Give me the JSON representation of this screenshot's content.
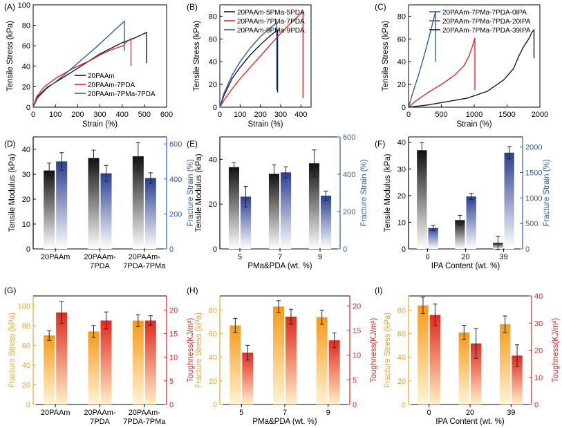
{
  "colors": {
    "black": "#1a1a1a",
    "red": "#e8281e",
    "blue": "#2e5ca8",
    "orange": "#f39c1e",
    "axis_blue": "#2e5ca8",
    "axis_orange": "#f0a030",
    "axis_red": "#e02020"
  },
  "chart_data": [
    {
      "panel": "(A)",
      "type": "line",
      "xlabel": "Strain (%)",
      "ylabel": "Tensile Stress (kPa)",
      "xlim": [
        0,
        600
      ],
      "ylim": [
        0,
        100
      ],
      "xticks": [
        0,
        100,
        200,
        300,
        400,
        500,
        600
      ],
      "yticks": [
        0,
        20,
        40,
        60,
        80,
        100
      ],
      "legend_position": "bottom-right",
      "series": [
        {
          "name": "20PAAm",
          "color": "black",
          "end_drop": 43,
          "points": [
            [
              0,
              0
            ],
            [
              20,
              10
            ],
            [
              60,
              19
            ],
            [
              120,
              27
            ],
            [
              200,
              38
            ],
            [
              300,
              52
            ],
            [
              400,
              63
            ],
            [
              450,
              67
            ],
            [
              480,
              70
            ],
            [
              510,
              73
            ]
          ]
        },
        {
          "name": "20PAAm-7PDA",
          "color": "red",
          "end_drop": 40,
          "points": [
            [
              0,
              0
            ],
            [
              15,
              10
            ],
            [
              50,
              20
            ],
            [
              100,
              28
            ],
            [
              180,
              38
            ],
            [
              260,
              46
            ],
            [
              300,
              51
            ],
            [
              350,
              56
            ],
            [
              390,
              59
            ],
            [
              405,
              60
            ],
            [
              420,
              64
            ],
            [
              440,
              67
            ]
          ]
        },
        {
          "name": "20PAAm-7PMa-7PDA",
          "color": "blue",
          "end_drop": 55,
          "points": [
            [
              0,
              0
            ],
            [
              20,
              9
            ],
            [
              60,
              18
            ],
            [
              120,
              28
            ],
            [
              200,
              43
            ],
            [
              280,
              58
            ],
            [
              350,
              72
            ],
            [
              390,
              80
            ],
            [
              410,
              84
            ]
          ]
        }
      ]
    },
    {
      "panel": "(B)",
      "type": "line",
      "xlabel": "Strain (%)",
      "ylabel": "Tensile Stress (kPa)",
      "xlim": [
        0,
        450
      ],
      "ylim": [
        0,
        90
      ],
      "xticks": [
        0,
        100,
        200,
        300,
        400
      ],
      "yticks": [
        0,
        20,
        40,
        60,
        80
      ],
      "legend_position": "top-left",
      "series": [
        {
          "name": "20PAAm-5PMa-5PDA",
          "color": "black",
          "end_drop": 13,
          "points": [
            [
              0,
              0
            ],
            [
              20,
              10
            ],
            [
              60,
              25
            ],
            [
              100,
              35
            ],
            [
              150,
              46
            ],
            [
              200,
              55
            ],
            [
              250,
              63
            ],
            [
              285,
              68
            ]
          ]
        },
        {
          "name": "20PAAm-7PMa-7PDA",
          "color": "red",
          "end_drop": 8,
          "points": [
            [
              0,
              0
            ],
            [
              20,
              6
            ],
            [
              60,
              16
            ],
            [
              100,
              25
            ],
            [
              150,
              35
            ],
            [
              200,
              45
            ],
            [
              250,
              55
            ],
            [
              300,
              65
            ],
            [
              350,
              74
            ],
            [
              410,
              84
            ]
          ]
        },
        {
          "name": "20PAAm-9PMa-9PDA",
          "color": "blue",
          "end_drop": 15,
          "points": [
            [
              0,
              0
            ],
            [
              20,
              12
            ],
            [
              60,
              28
            ],
            [
              100,
              40
            ],
            [
              150,
              52
            ],
            [
              200,
              62
            ],
            [
              250,
              70
            ],
            [
              280,
              74
            ]
          ]
        }
      ]
    },
    {
      "panel": "(C)",
      "type": "line",
      "xlabel": "Strain (%)",
      "ylabel": "Tensile Stress (kPa)",
      "xlim": [
        0,
        2000
      ],
      "ylim": [
        0,
        90
      ],
      "xticks": [
        0,
        500,
        1000,
        1500,
        2000
      ],
      "yticks": [
        0,
        20,
        40,
        60,
        80
      ],
      "legend_position": "top-right",
      "series": [
        {
          "name": "20PAAm-7PMa-7PDA-0IPA",
          "color": "blue",
          "end_drop": 40,
          "points": [
            [
              0,
              0
            ],
            [
              50,
              10
            ],
            [
              150,
              28
            ],
            [
              250,
              48
            ],
            [
              350,
              70
            ],
            [
              410,
              84
            ]
          ]
        },
        {
          "name": "20PAAm-7PMa-7PDA-20IPA",
          "color": "red",
          "end_drop": 15,
          "points": [
            [
              0,
              0
            ],
            [
              100,
              5
            ],
            [
              300,
              13
            ],
            [
              500,
              20
            ],
            [
              700,
              28
            ],
            [
              850,
              37
            ],
            [
              920,
              45
            ],
            [
              970,
              53
            ],
            [
              1010,
              61
            ]
          ]
        },
        {
          "name": "20PAAm-7PMa-7PDA-39IPA",
          "color": "black",
          "end_drop": 43,
          "points": [
            [
              0,
              0
            ],
            [
              300,
              2
            ],
            [
              600,
              5
            ],
            [
              900,
              8
            ],
            [
              1200,
              14
            ],
            [
              1450,
              24
            ],
            [
              1600,
              34
            ],
            [
              1680,
              45
            ],
            [
              1750,
              53
            ],
            [
              1830,
              60
            ],
            [
              1880,
              66
            ],
            [
              1910,
              68
            ]
          ]
        }
      ]
    },
    {
      "panel": "(D)",
      "type": "bar",
      "categories": [
        "20PAAm",
        "20PAAm-\n7PDA",
        "20PAAm-\n7PDA-7PMa"
      ],
      "ylabel": "Tensile Modulus (kPa)",
      "y2label": "Fracture Strain (%)",
      "ylim": [
        0,
        45
      ],
      "yticks": [
        0,
        10,
        20,
        30,
        40
      ],
      "y2lim": [
        0,
        640
      ],
      "y2ticks": [
        0,
        200,
        400,
        600
      ],
      "series": [
        {
          "name": "Tensile Modulus",
          "axis": "left",
          "style": "gray",
          "values": [
            31.5,
            36.5,
            37.2
          ],
          "errors": [
            3,
            3.2,
            5.5
          ]
        },
        {
          "name": "Fracture Strain",
          "axis": "right",
          "style": "blue",
          "values": [
            500,
            432,
            405
          ],
          "errors": [
            50,
            45,
            30
          ]
        }
      ]
    },
    {
      "panel": "(E)",
      "type": "bar",
      "categories": [
        "5",
        "7",
        "9"
      ],
      "xlabel": "PMa&PDA (wt. %)",
      "ylabel": "Tensile Modulus (kPa)",
      "y2label": "Fracture Strain (%)",
      "ylim": [
        0,
        50
      ],
      "yticks": [
        0,
        20,
        40
      ],
      "y2lim": [
        0,
        600
      ],
      "y2ticks": [
        0,
        200,
        400,
        600
      ],
      "series": [
        {
          "name": "Tensile Modulus",
          "axis": "left",
          "style": "gray",
          "values": [
            36.5,
            33.5,
            38.2
          ],
          "errors": [
            2.0,
            4.0,
            6.0
          ]
        },
        {
          "name": "Fracture Strain",
          "axis": "right",
          "style": "blue",
          "values": [
            280,
            410,
            285
          ],
          "errors": [
            55,
            30,
            25
          ]
        }
      ]
    },
    {
      "panel": "(F)",
      "type": "bar",
      "categories": [
        "0",
        "20",
        "39"
      ],
      "xlabel": "IPA Content (wt. %)",
      "ylabel": "Tensile Modulus (kPa)",
      "y2label": "Fracture Strain (%)",
      "ylim": [
        0,
        42
      ],
      "yticks": [
        0,
        10,
        20,
        30,
        40
      ],
      "y2lim": [
        0,
        2200
      ],
      "y2ticks": [
        0,
        500,
        1000,
        1500,
        2000
      ],
      "series": [
        {
          "name": "Tensile Modulus",
          "axis": "left",
          "style": "gray",
          "values": [
            37.0,
            10.8,
            2.3
          ],
          "errors": [
            2.8,
            1.8,
            2.5
          ]
        },
        {
          "name": "Fracture Strain",
          "axis": "right",
          "style": "blue",
          "values": [
            410,
            1030,
            1890
          ],
          "errors": [
            50,
            60,
            120
          ]
        }
      ]
    },
    {
      "panel": "(G)",
      "type": "bar",
      "categories": [
        "20PAAm",
        "20PAAm-\n7PDA",
        "20PAAm-\n7PDA-7PMa"
      ],
      "ylabel": "Fracture Stress (kPa)",
      "y2label": "Toughness(KJ/m³)",
      "ylim": [
        0,
        110
      ],
      "yticks": [
        0,
        20,
        40,
        60,
        80,
        100
      ],
      "y2lim": [
        0,
        23
      ],
      "y2ticks": [
        0,
        5,
        10,
        15,
        20
      ],
      "series": [
        {
          "name": "Fracture Stress",
          "axis": "left",
          "style": "orange",
          "values": [
            70,
            74,
            85
          ],
          "errors": [
            5,
            6,
            6
          ]
        },
        {
          "name": "Toughness",
          "axis": "right",
          "style": "red",
          "values": [
            19.5,
            17.8,
            17.8
          ],
          "errors": [
            2.3,
            1.8,
            1.0
          ]
        }
      ]
    },
    {
      "panel": "(H)",
      "type": "bar",
      "categories": [
        "5",
        "7",
        "9"
      ],
      "xlabel": "PMa&PDA (wt. %)",
      "ylabel": "Fracture Stress (kPa)",
      "y2label": "Toughness(KJ/m³)",
      "ylim": [
        0,
        92
      ],
      "yticks": [
        0,
        20,
        40,
        60,
        80
      ],
      "y2lim": [
        0,
        22
      ],
      "y2ticks": [
        0,
        5,
        10,
        15,
        20
      ],
      "series": [
        {
          "name": "Fracture Stress",
          "axis": "left",
          "style": "orange",
          "values": [
            67,
            83,
            74
          ],
          "errors": [
            6,
            5,
            6
          ]
        },
        {
          "name": "Toughness",
          "axis": "right",
          "style": "red",
          "values": [
            10.5,
            17.8,
            13.0
          ],
          "errors": [
            1.5,
            1.5,
            1.5
          ]
        }
      ]
    },
    {
      "panel": "(I)",
      "type": "bar",
      "categories": [
        "0",
        "20",
        "39"
      ],
      "xlabel": "IPA Content (wt. %)",
      "ylabel": "Fracture Stress (kPa)",
      "y2label": "Toughness(KJ/m³)",
      "ylim": [
        0,
        92
      ],
      "yticks": [
        0,
        20,
        40,
        60,
        80
      ],
      "y2lim": [
        0,
        40
      ],
      "y2ticks": [
        0,
        10,
        20,
        30,
        40
      ],
      "series": [
        {
          "name": "Fracture Stress",
          "axis": "left",
          "style": "orange",
          "values": [
            84,
            61,
            68
          ],
          "errors": [
            7,
            6,
            7
          ]
        },
        {
          "name": "Toughness",
          "axis": "right",
          "style": "red",
          "values": [
            33,
            22.5,
            18
          ],
          "errors": [
            4,
            5.5,
            4
          ]
        }
      ]
    }
  ]
}
